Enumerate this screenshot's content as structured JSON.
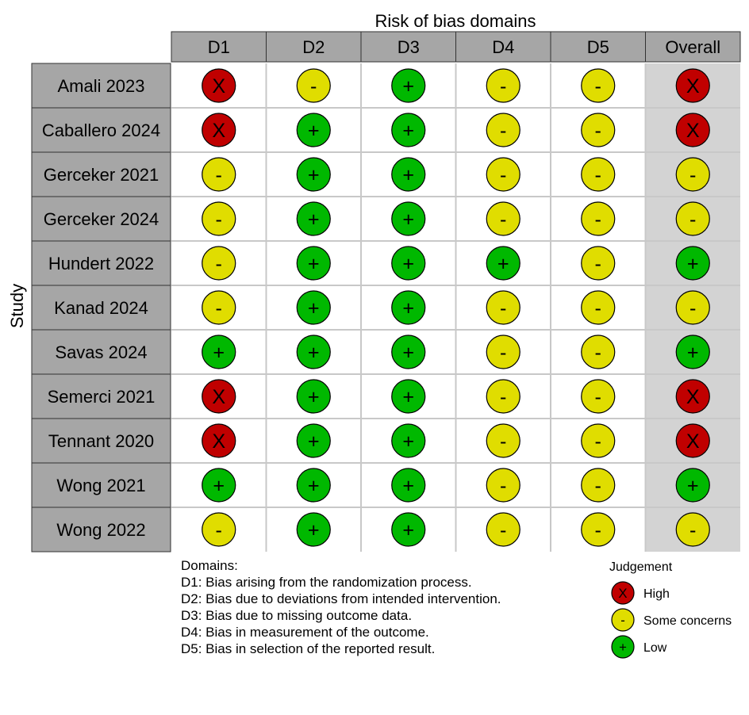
{
  "chart_data": {
    "type": "table",
    "title": "Risk of bias domains",
    "row_axis_label": "Study",
    "columns": [
      "D1",
      "D2",
      "D3",
      "D4",
      "D5",
      "Overall"
    ],
    "rows": [
      {
        "study": "Amali 2023",
        "judgements": [
          "High",
          "Some concerns",
          "Low",
          "Some concerns",
          "Some concerns",
          "High"
        ]
      },
      {
        "study": "Caballero 2024",
        "judgements": [
          "High",
          "Low",
          "Low",
          "Some concerns",
          "Some concerns",
          "High"
        ]
      },
      {
        "study": "Gerceker 2021",
        "judgements": [
          "Some concerns",
          "Low",
          "Low",
          "Some concerns",
          "Some concerns",
          "Some concerns"
        ]
      },
      {
        "study": "Gerceker 2024",
        "judgements": [
          "Some concerns",
          "Low",
          "Low",
          "Some concerns",
          "Some concerns",
          "Some concerns"
        ]
      },
      {
        "study": "Hundert 2022",
        "judgements": [
          "Some concerns",
          "Low",
          "Low",
          "Low",
          "Some concerns",
          "Low"
        ]
      },
      {
        "study": "Kanad 2024",
        "judgements": [
          "Some concerns",
          "Low",
          "Low",
          "Some concerns",
          "Some concerns",
          "Some concerns"
        ]
      },
      {
        "study": "Savas 2024",
        "judgements": [
          "Low",
          "Low",
          "Low",
          "Some concerns",
          "Some concerns",
          "Low"
        ]
      },
      {
        "study": "Semerci 2021",
        "judgements": [
          "High",
          "Low",
          "Low",
          "Some concerns",
          "Some concerns",
          "High"
        ]
      },
      {
        "study": "Tennant 2020",
        "judgements": [
          "High",
          "Low",
          "Low",
          "Some concerns",
          "Some concerns",
          "High"
        ]
      },
      {
        "study": "Wong 2021",
        "judgements": [
          "Low",
          "Low",
          "Low",
          "Some concerns",
          "Some concerns",
          "Low"
        ]
      },
      {
        "study": "Wong 2022",
        "judgements": [
          "Some concerns",
          "Low",
          "Low",
          "Some concerns",
          "Some concerns",
          "Some concerns"
        ]
      }
    ],
    "domains_title": "Domains:",
    "domain_descriptions": [
      "D1: Bias arising from the randomization process.",
      "D2: Bias due to deviations from intended intervention.",
      "D3: Bias due to missing outcome data.",
      "D4: Bias in measurement of the outcome.",
      "D5: Bias in selection of the reported result."
    ],
    "legend_title": "Judgement",
    "legend": [
      {
        "level": "High",
        "label": "High",
        "symbol": "X",
        "color": "#c00000"
      },
      {
        "level": "Some concerns",
        "label": "Some concerns",
        "symbol": "-",
        "color": "#e0dd00"
      },
      {
        "level": "Low",
        "label": "Low",
        "symbol": "+",
        "color": "#00b800"
      }
    ],
    "colors": {
      "header_fill": "#a6a6a6",
      "overall_column_fill": "#d3d3d3",
      "grid_line": "#c8c8c8"
    },
    "grid": true,
    "legend_placement": "bottom-right"
  }
}
